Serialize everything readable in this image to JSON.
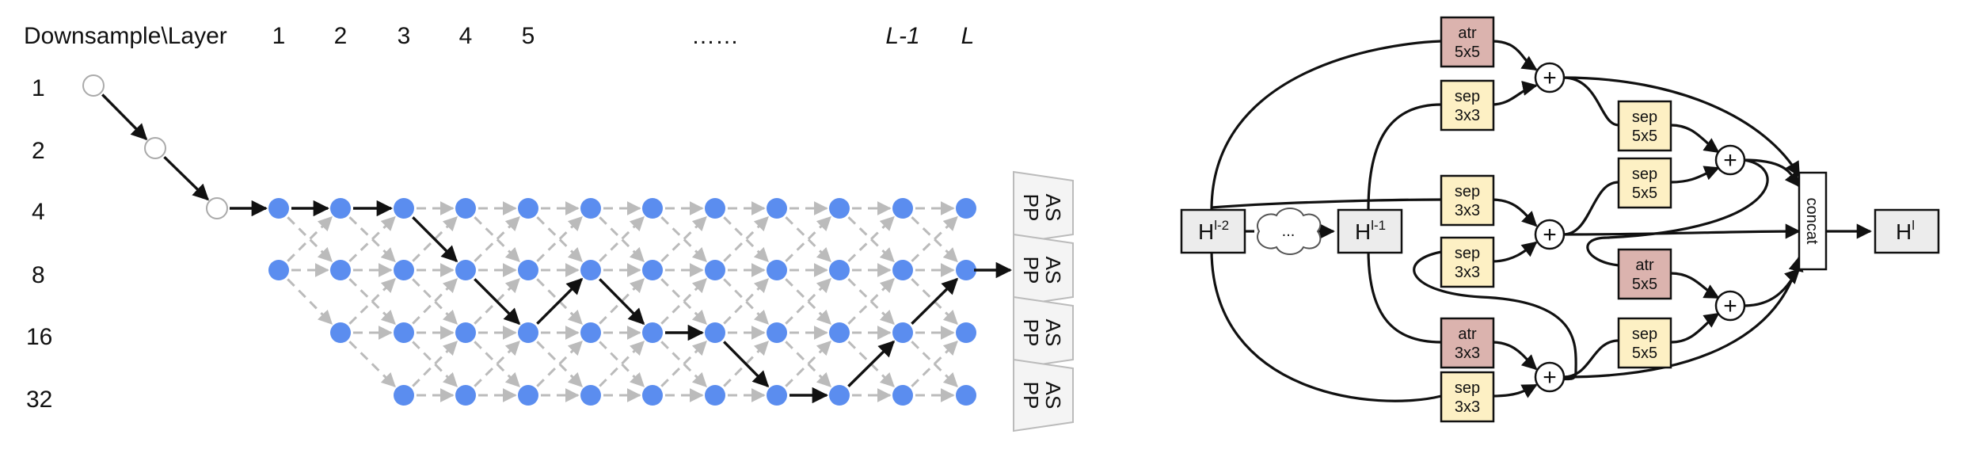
{
  "left": {
    "corner_label": "Downsample\\Layer",
    "layer_labels": [
      "1",
      "2",
      "3",
      "4",
      "5",
      "……",
      "L-1",
      "L"
    ],
    "downsample_labels": [
      "1",
      "2",
      "4",
      "8",
      "16",
      "32"
    ],
    "aspp_label_line1": "AS",
    "aspp_label_line2": "PP",
    "colors": {
      "node": "#5b8def",
      "stem_node": "#ffffff",
      "gray_arrow": "#bbbbbb",
      "black_arrow": "#111111",
      "aspp_fill": "#f4f4f4"
    }
  },
  "right": {
    "inputs": {
      "h_l2_base": "H",
      "h_l2_sup": "l-2",
      "h_l1_base": "H",
      "h_l1_sup": "l-1",
      "cloud": "...",
      "out_base": "H",
      "out_sup": "l"
    },
    "concat_label": "concat",
    "ops": [
      {
        "l1": "atr",
        "l2": "5x5",
        "color": "#dbb3ae"
      },
      {
        "l1": "sep",
        "l2": "3x3",
        "color": "#fdf0c4"
      },
      {
        "l1": "sep",
        "l2": "5x5",
        "color": "#fdf0c4"
      },
      {
        "l1": "sep",
        "l2": "3x3",
        "color": "#fdf0c4"
      },
      {
        "l1": "sep",
        "l2": "5x5",
        "color": "#fdf0c4"
      },
      {
        "l1": "sep",
        "l2": "3x3",
        "color": "#fdf0c4"
      },
      {
        "l1": "atr",
        "l2": "5x5",
        "color": "#dbb3ae"
      },
      {
        "l1": "atr",
        "l2": "3x3",
        "color": "#dbb3ae"
      },
      {
        "l1": "sep",
        "l2": "5x5",
        "color": "#fdf0c4"
      },
      {
        "l1": "sep",
        "l2": "3x3",
        "color": "#fdf0c4"
      }
    ],
    "plus_symbol": "+"
  }
}
